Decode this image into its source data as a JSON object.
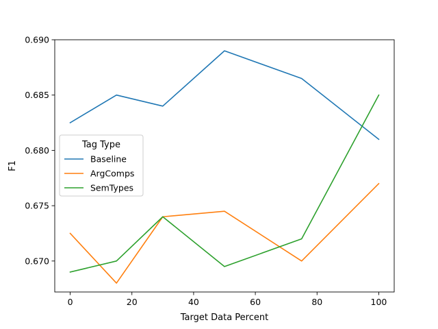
{
  "chart_data": {
    "type": "line",
    "title": "",
    "xlabel": "Target Data Percent",
    "ylabel": "F1",
    "xlim": [
      -5,
      105
    ],
    "ylim": [
      0.6672,
      0.69
    ],
    "xticks": [
      0,
      20,
      40,
      60,
      80,
      100
    ],
    "yticks": [
      0.67,
      0.675,
      0.68,
      0.685,
      0.69
    ],
    "ytick_labels": [
      "0.670",
      "0.675",
      "0.680",
      "0.685",
      "0.690"
    ],
    "grid": false,
    "legend": {
      "title": "Tag Type",
      "placement": "center-left"
    },
    "x": [
      0,
      15,
      30,
      50,
      75,
      100
    ],
    "series": [
      {
        "name": "Baseline",
        "color": "#1f77b4",
        "values": [
          0.6825,
          0.685,
          0.684,
          0.689,
          0.6865,
          0.681
        ]
      },
      {
        "name": "ArgComps",
        "color": "#ff7f0e",
        "values": [
          0.6725,
          0.668,
          0.674,
          0.6745,
          0.67,
          0.677
        ]
      },
      {
        "name": "SemTypes",
        "color": "#2ca02c",
        "values": [
          0.669,
          0.67,
          0.674,
          0.6695,
          0.672,
          0.685
        ]
      }
    ]
  }
}
